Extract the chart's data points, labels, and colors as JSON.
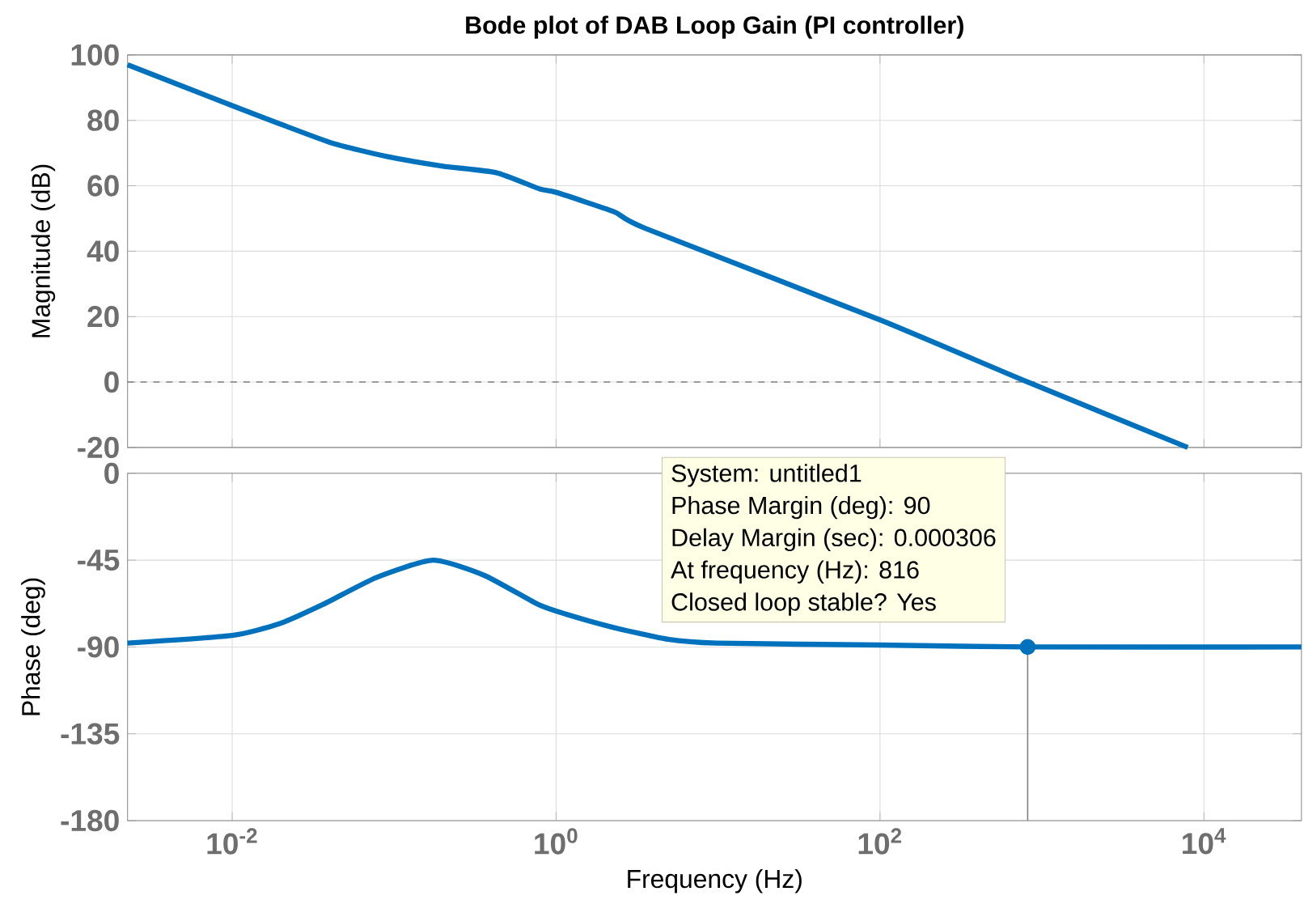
{
  "chart_data": [
    {
      "type": "line",
      "title": "Bode plot of DAB Loop Gain (PI controller)",
      "ylabel": "Magnitude (dB)",
      "x": [
        0.00226,
        0.01,
        0.0195,
        0.0417,
        0.089,
        0.2,
        0.427,
        0.794,
        1,
        2.29,
        3.55,
        100,
        816,
        7943
      ],
      "values": [
        97,
        84.5,
        79,
        73,
        69,
        66,
        64,
        59,
        58,
        52,
        47,
        19,
        0,
        -20
      ],
      "color": "#0072bd",
      "xlim": [
        0.00226,
        40000
      ],
      "ylim": [
        -20,
        100
      ],
      "xticks": [
        {
          "value": 0.01,
          "label": null
        },
        {
          "value": 1,
          "label": null
        },
        {
          "value": 100,
          "label": null
        },
        {
          "value": 10000,
          "label": null
        }
      ],
      "yticks": [
        -20,
        0,
        20,
        40,
        60,
        80,
        100
      ],
      "log": "x",
      "grid": true,
      "tick_labels": "y",
      "ref_lines": [
        {
          "axis": "y",
          "value": 0,
          "color": "#808080",
          "line_style": "dashed"
        }
      ]
    },
    {
      "type": "line",
      "xlabel": "Frequency  (Hz)",
      "ylabel": "Phase (deg)",
      "series": [
        {
          "color": "#0072bd",
          "x": [
            0.00226,
            0.01,
            0.0195,
            0.0363,
            0.0776,
            0.174,
            0.363,
            0.776,
            1.15,
            2.29,
            4.9,
            9.8,
            100,
            816,
            40000
          ],
          "values": [
            -88,
            -84,
            -78,
            -68,
            -54,
            -45,
            -53,
            -68,
            -73,
            -80,
            -86,
            -88,
            -89,
            -90,
            -90
          ]
        },
        {
          "type": "line",
          "color": "#808080",
          "x": [
            816,
            816
          ],
          "values": [
            -90,
            -180
          ]
        },
        {
          "type": "scatter",
          "marker": "circle",
          "color": "#0072bd",
          "x": [
            816
          ],
          "values": [
            -90
          ]
        }
      ],
      "xlim": [
        0.00226,
        40000
      ],
      "ylim": [
        -180,
        0
      ],
      "xticks": [
        {
          "value": 0.01,
          "label": "10$^{-2}$"
        },
        {
          "value": 1,
          "label": "10$^{0}$"
        },
        {
          "value": 100,
          "label": "10$^{2}$"
        },
        {
          "value": 10000,
          "label": "10$^{4}$"
        }
      ],
      "yticks": [
        -180,
        -135,
        -90,
        -45,
        0
      ],
      "log": "x",
      "grid": true,
      "annotations": [
        "System: untitled1",
        "Phase Margin (deg): 90",
        "Delay Margin (sec): 0.000306",
        "At frequency (Hz): 816",
        "Closed loop stable? Yes"
      ]
    }
  ]
}
